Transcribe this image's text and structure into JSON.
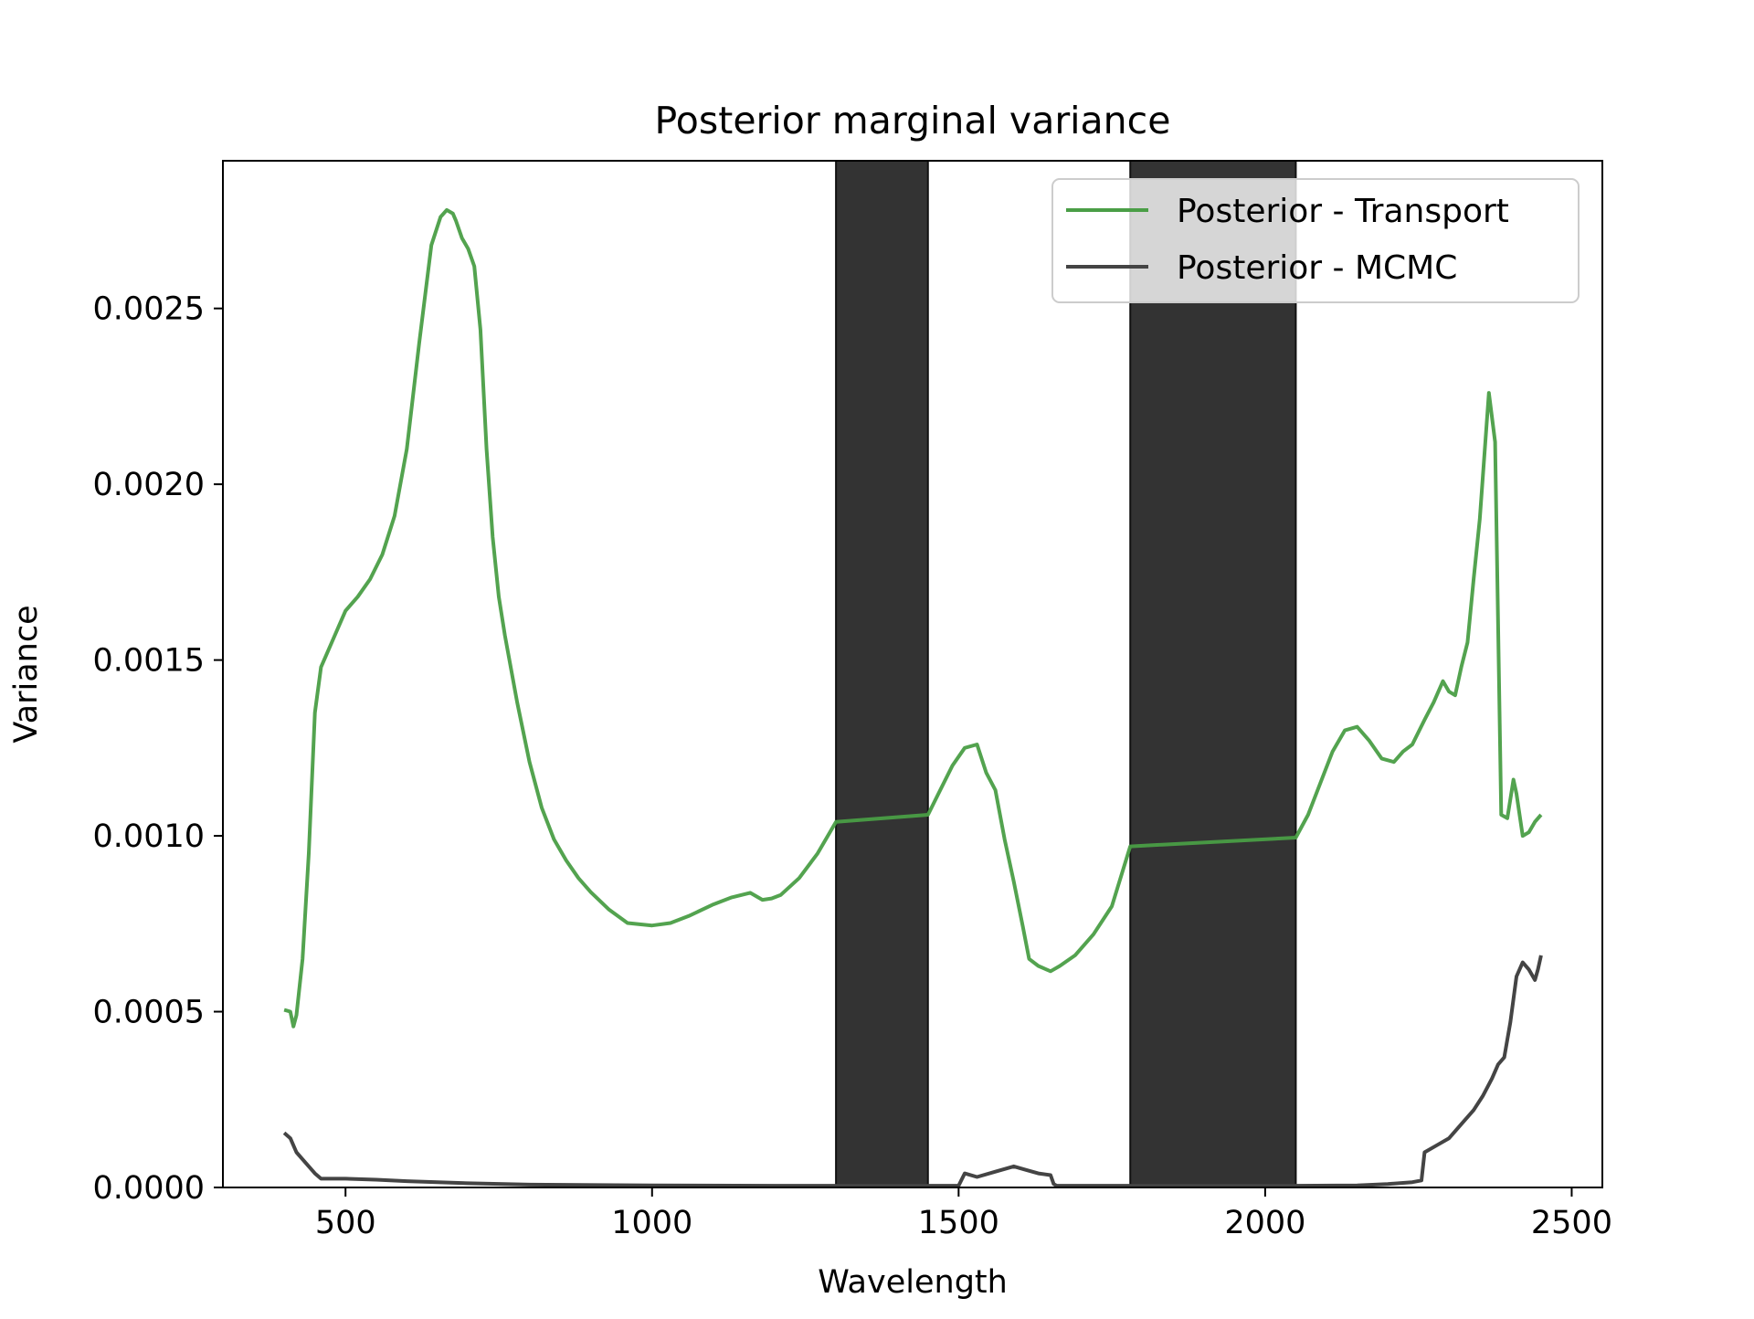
{
  "colors": {
    "transport": "#4a9e46",
    "mcmc": "#444444",
    "band": "#333333",
    "background": "#ffffff"
  },
  "chart_data": {
    "type": "line",
    "title": "Posterior marginal variance",
    "xlabel": "Wavelength",
    "ylabel": "Variance",
    "xlim": [
      300,
      2550
    ],
    "ylim": [
      0,
      0.00292
    ],
    "xticks": [
      500,
      1000,
      1500,
      2000,
      2500
    ],
    "xtick_labels": [
      "500",
      "1000",
      "1500",
      "2000",
      "2500"
    ],
    "yticks": [
      0,
      0.0005,
      0.001,
      0.0015,
      0.002,
      0.0025
    ],
    "ytick_labels": [
      "0.0000",
      "0.0005",
      "0.0010",
      "0.0015",
      "0.0020",
      "0.0025"
    ],
    "grid": false,
    "legend_position": "upper right",
    "shaded_bands": [
      {
        "x0": 1300,
        "x1": 1450
      },
      {
        "x0": 1780,
        "x1": 2050
      }
    ],
    "series": [
      {
        "name": "Posterior - Transport",
        "color": "#4a9e46",
        "x": [
          400,
          410,
          415,
          420,
          430,
          440,
          450,
          460,
          470,
          480,
          490,
          500,
          520,
          540,
          560,
          580,
          600,
          620,
          640,
          655,
          665,
          675,
          680,
          690,
          700,
          710,
          720,
          730,
          740,
          750,
          760,
          780,
          800,
          820,
          840,
          860,
          880,
          900,
          930,
          960,
          1000,
          1030,
          1060,
          1100,
          1130,
          1160,
          1180,
          1195,
          1210,
          1240,
          1270,
          1300,
          1450,
          1470,
          1490,
          1510,
          1530,
          1545,
          1560,
          1575,
          1590,
          1605,
          1615,
          1630,
          1650,
          1665,
          1690,
          1720,
          1750,
          1780,
          2050,
          2070,
          2090,
          2110,
          2130,
          2150,
          2170,
          2190,
          2210,
          2225,
          2240,
          2260,
          2275,
          2290,
          2300,
          2310,
          2320,
          2330,
          2340,
          2350,
          2365,
          2375,
          2385,
          2395,
          2405,
          2410,
          2420,
          2430,
          2440,
          2450
        ],
        "y": [
          0.000505,
          0.0005,
          0.000458,
          0.00049,
          0.00065,
          0.00095,
          0.00135,
          0.00148,
          0.00152,
          0.00156,
          0.0016,
          0.00164,
          0.00168,
          0.00173,
          0.0018,
          0.00191,
          0.0021,
          0.0024,
          0.00268,
          0.00276,
          0.00278,
          0.00277,
          0.00275,
          0.0027,
          0.00267,
          0.00262,
          0.00244,
          0.0021,
          0.00185,
          0.00168,
          0.00157,
          0.00138,
          0.00121,
          0.00108,
          0.00099,
          0.00093,
          0.00088,
          0.00084,
          0.00079,
          0.000752,
          0.000745,
          0.000752,
          0.000772,
          0.000805,
          0.000825,
          0.000838,
          0.000818,
          0.000822,
          0.000832,
          0.00088,
          0.00095,
          0.00104,
          0.00106,
          0.00113,
          0.0012,
          0.00125,
          0.00126,
          0.00118,
          0.00113,
          0.00099,
          0.00087,
          0.00074,
          0.00065,
          0.00063,
          0.000615,
          0.00063,
          0.00066,
          0.00072,
          0.0008,
          0.00097,
          0.000995,
          0.00106,
          0.00115,
          0.00124,
          0.0013,
          0.00131,
          0.00127,
          0.00122,
          0.00121,
          0.00124,
          0.00126,
          0.00133,
          0.00138,
          0.00144,
          0.00141,
          0.0014,
          0.00148,
          0.00155,
          0.00173,
          0.0019,
          0.00226,
          0.00212,
          0.00106,
          0.00105,
          0.00116,
          0.00112,
          0.001,
          0.00101,
          0.00104,
          0.00106
        ]
      },
      {
        "name": "Posterior - MCMC",
        "color": "#444444",
        "x": [
          400,
          410,
          420,
          430,
          440,
          450,
          460,
          500,
          550,
          600,
          700,
          800,
          1000,
          1200,
          1300,
          1450,
          1500,
          1510,
          1530,
          1560,
          1590,
          1610,
          1630,
          1650,
          1655,
          1660,
          1780,
          2050,
          2150,
          2200,
          2240,
          2255,
          2260,
          2280,
          2300,
          2320,
          2340,
          2355,
          2370,
          2380,
          2390,
          2400,
          2410,
          2420,
          2430,
          2440,
          2445,
          2450
        ],
        "y": [
          0.000155,
          0.00014,
          0.0001,
          8e-05,
          6e-05,
          4e-05,
          2.5e-05,
          2.5e-05,
          2.2e-05,
          1.8e-05,
          1.2e-05,
          8e-06,
          6e-06,
          5e-06,
          5e-06,
          5e-06,
          5e-06,
          4e-05,
          3e-05,
          4.5e-05,
          6e-05,
          5e-05,
          4e-05,
          3.5e-05,
          1e-05,
          5e-06,
          5e-06,
          5e-06,
          6e-06,
          1e-05,
          1.5e-05,
          2e-05,
          0.0001,
          0.00012,
          0.00014,
          0.00018,
          0.00022,
          0.00026,
          0.00031,
          0.00035,
          0.00037,
          0.00047,
          0.0006,
          0.00064,
          0.00062,
          0.00059,
          0.00062,
          0.00066
        ]
      }
    ]
  }
}
